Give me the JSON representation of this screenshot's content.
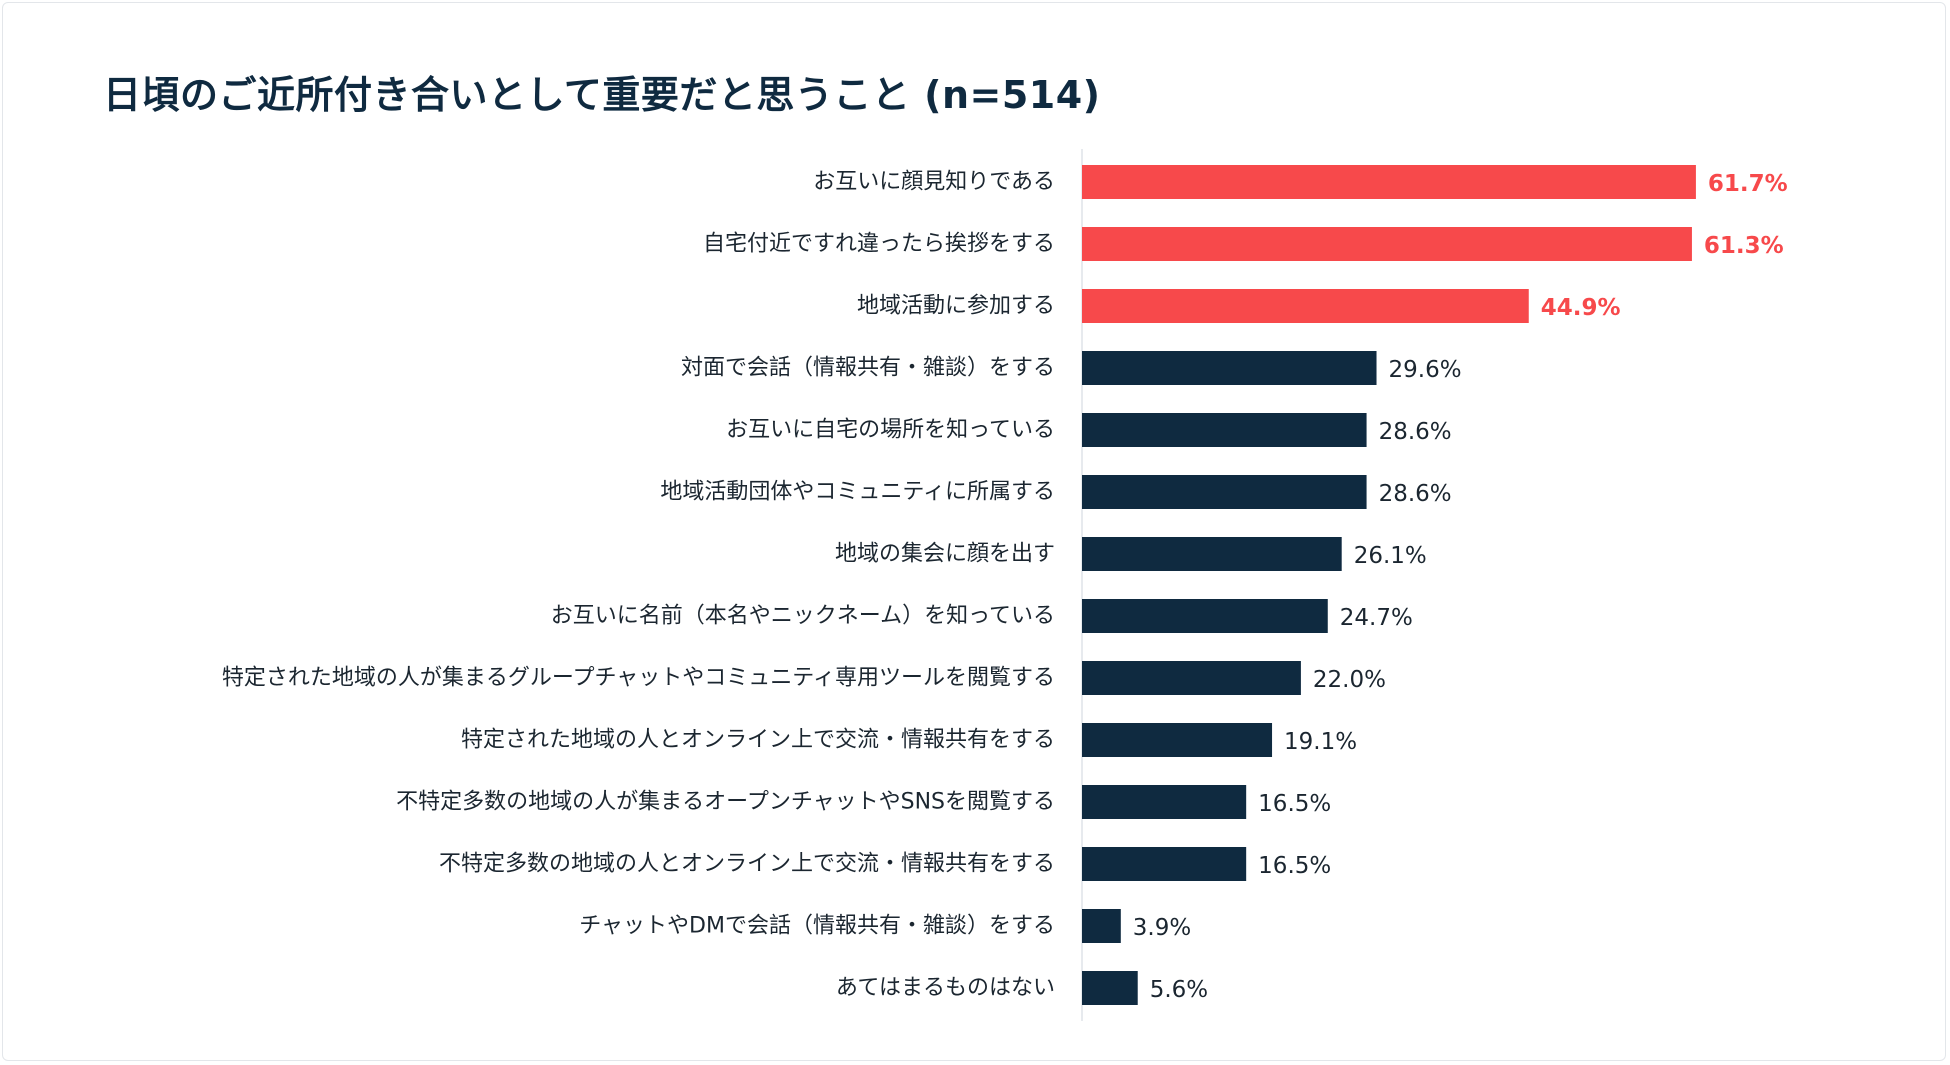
{
  "chart_data": {
    "type": "bar",
    "orientation": "horizontal",
    "title": "日頃のご近所付き合いとして重要だと思うこと (n=514)",
    "categories": [
      "お互いに顔見知りである",
      "自宅付近ですれ違ったら挨拶をする",
      "地域活動に参加する",
      "対面で会話（情報共有・雑談）をする",
      "お互いに自宅の場所を知っている",
      "地域活動団体やコミュニティに所属する",
      "地域の集会に顔を出す",
      "お互いに名前（本名やニックネーム）を知っている",
      "特定された地域の人が集まるグループチャットやコミュニティ専用ツールを閲覧する",
      "特定された地域の人とオンライン上で交流・情報共有をする",
      "不特定多数の地域の人が集まるオープンチャットやSNSを閲覧する",
      "不特定多数の地域の人とオンライン上で交流・情報共有をする",
      "チャットやDMで会話（情報共有・雑談）をする",
      "あてはまるものはない"
    ],
    "values": [
      61.7,
      61.3,
      44.9,
      29.6,
      28.6,
      28.6,
      26.1,
      24.7,
      22.0,
      19.1,
      16.5,
      16.5,
      3.9,
      5.6
    ],
    "value_labels": [
      "61.7%",
      "61.3%",
      "44.9%",
      "29.6%",
      "28.6%",
      "28.6%",
      "26.1%",
      "24.7%",
      "22.0%",
      "19.1%",
      "16.5%",
      "16.5%",
      "3.9%",
      "5.6%"
    ],
    "highlight_count": 3,
    "colors": {
      "highlight": "#f7494b",
      "default": "#0f2a40",
      "label_default": "#1b2630",
      "axis": "#cfd6dc"
    },
    "xlim": [
      0,
      100
    ],
    "unit": "%",
    "grid": false,
    "legend": "none"
  }
}
